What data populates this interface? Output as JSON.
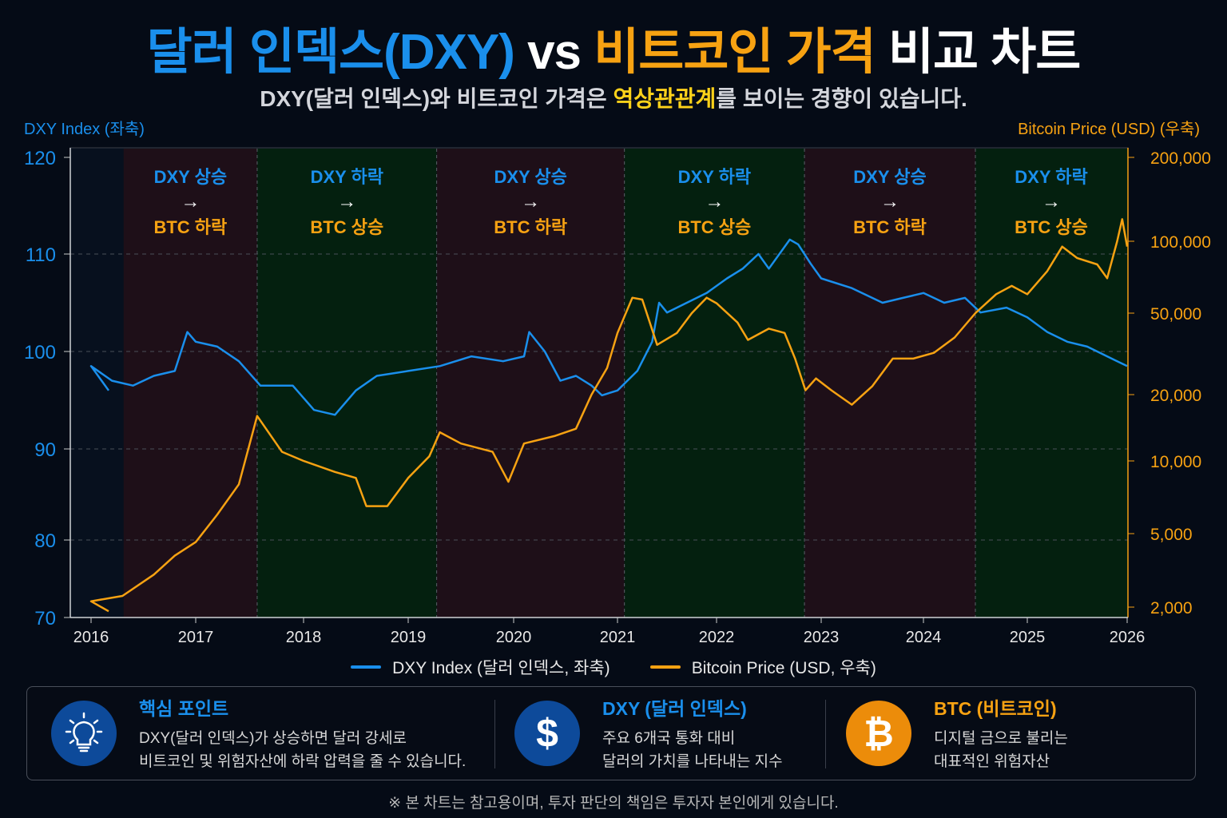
{
  "header": {
    "title_part1": "달러 인덱스(DXY)",
    "title_part2": " vs ",
    "title_part3": "비트코인 가격",
    "title_part4": " 비교 차트",
    "subtitle_part1": "DXY(달러 인덱스)와 비트코인 가격은 ",
    "subtitle_highlight": "역상관관계",
    "subtitle_part2": "를 보이는 경향이 있습니다."
  },
  "colors": {
    "background": "#050b16",
    "dxy": "#1a8fec",
    "btc": "#f7a212",
    "highlight": "#ffd21a",
    "rise_region": "#1e0f18",
    "fall_region": "#04200f"
  },
  "chart_data": {
    "type": "line",
    "title": "달러 인덱스(DXY) vs 비트코인 가격 비교 차트",
    "ylabel_left": "DXY Index (좌축)",
    "ylabel_right": "Bitcoin Price (USD) (우축)",
    "xlim": [
      2015.8,
      2026.0
    ],
    "ylim_left": [
      70,
      120
    ],
    "ylim_right": [
      1900,
      200000
    ],
    "right_scale": "log",
    "grid": "horizontal dashed",
    "legend_placement": "bottom-center",
    "x_ticks": [
      "2016",
      "2017",
      "2018",
      "2019",
      "2020",
      "2021",
      "2022",
      "2023",
      "2024",
      "2025",
      "2026"
    ],
    "y_ticks_left": [
      "120",
      "110",
      "100",
      "90",
      "80",
      "70"
    ],
    "y_ticks_right": [
      "200,000",
      "100,000",
      "50,000",
      "20,000",
      "10,000",
      "5,000",
      "2,000"
    ],
    "series": [
      {
        "name": "DXY Index (달러 인덱스, 좌축)",
        "axis": "left",
        "x": [
          2015.8,
          2016.0,
          2016.2,
          2016.4,
          2016.6,
          2016.8,
          2016.92,
          2017.0,
          2017.2,
          2017.4,
          2017.6,
          2017.9,
          2018.1,
          2018.3,
          2018.5,
          2018.7,
          2019.0,
          2019.3,
          2019.6,
          2019.9,
          2020.1,
          2020.15,
          2020.3,
          2020.45,
          2020.6,
          2020.75,
          2020.85,
          2021.0,
          2021.2,
          2021.35,
          2021.42,
          2021.5,
          2021.7,
          2021.9,
          2022.1,
          2022.25,
          2022.4,
          2022.5,
          2022.7,
          2022.78,
          2022.9,
          2023.0,
          2023.3,
          2023.6,
          2023.8,
          2024.0,
          2024.2,
          2024.4,
          2024.55,
          2024.8,
          2025.0,
          2025.2,
          2025.4,
          2025.6,
          2025.8,
          2026.0
        ],
        "values": [
          96,
          98.5,
          97,
          96.5,
          97.5,
          98,
          102,
          101,
          100.5,
          99,
          96.5,
          96.5,
          94,
          93.5,
          96,
          97.5,
          98,
          98.5,
          99.5,
          99,
          99.5,
          102,
          100,
          97,
          97.5,
          96.5,
          95.5,
          96,
          98,
          101,
          105,
          104,
          105,
          106,
          107.5,
          108.5,
          110,
          108.5,
          111.5,
          111,
          109,
          107.5,
          106.5,
          105,
          105.5,
          106,
          105,
          105.5,
          104,
          104.5,
          103.5,
          102,
          101,
          100.5,
          99.5,
          98.5
        ]
      },
      {
        "name": "Bitcoin Price (USD, 우축)",
        "axis": "right",
        "x": [
          2015.8,
          2016.0,
          2016.3,
          2016.6,
          2016.8,
          2017.0,
          2017.2,
          2017.4,
          2017.57,
          2017.8,
          2018.0,
          2018.3,
          2018.5,
          2018.6,
          2018.8,
          2019.0,
          2019.2,
          2019.3,
          2019.5,
          2019.8,
          2019.95,
          2020.1,
          2020.4,
          2020.6,
          2020.75,
          2020.9,
          2021.0,
          2021.15,
          2021.25,
          2021.4,
          2021.6,
          2021.75,
          2021.9,
          2022.0,
          2022.2,
          2022.3,
          2022.5,
          2022.65,
          2022.75,
          2022.85,
          2022.95,
          2023.1,
          2023.3,
          2023.5,
          2023.7,
          2023.9,
          2024.1,
          2024.3,
          2024.5,
          2024.7,
          2024.85,
          2025.0,
          2025.2,
          2025.35,
          2025.5,
          2025.7,
          2025.8,
          2025.9,
          2025.95,
          2026.0
        ],
        "values": [
          1900,
          2150,
          2300,
          3000,
          3800,
          4500,
          6000,
          8000,
          16000,
          11000,
          10000,
          9000,
          8500,
          6500,
          6500,
          8500,
          10500,
          13500,
          12000,
          11000,
          8200,
          12000,
          13000,
          14000,
          20000,
          27000,
          40000,
          58000,
          57000,
          35000,
          40000,
          50000,
          58000,
          55000,
          45000,
          37000,
          42000,
          40000,
          30000,
          21000,
          24000,
          21000,
          18000,
          22000,
          30000,
          30000,
          32000,
          38000,
          50000,
          60000,
          65000,
          60000,
          75000,
          95000,
          85000,
          80000,
          70000,
          100000,
          120000,
          95000
        ]
      }
    ],
    "regions": [
      {
        "from": 2015.95,
        "to": 2017.57,
        "type": "rise",
        "line1": "DXY 상승",
        "arrow": "→",
        "line2": "BTC 하락"
      },
      {
        "from": 2017.57,
        "to": 2019.27,
        "type": "fall",
        "line1": "DXY 하락",
        "arrow": "→",
        "line2": "BTC 상승"
      },
      {
        "from": 2019.27,
        "to": 2021.07,
        "type": "rise",
        "line1": "DXY 상승",
        "arrow": "→",
        "line2": "BTC 하락"
      },
      {
        "from": 2021.07,
        "to": 2022.84,
        "type": "fall",
        "line1": "DXY 하락",
        "arrow": "→",
        "line2": "BTC 상승"
      },
      {
        "from": 2022.84,
        "to": 2024.5,
        "type": "rise",
        "line1": "DXY 상승",
        "arrow": "→",
        "line2": "BTC 하락"
      },
      {
        "from": 2024.5,
        "to": 2026.0,
        "type": "fall",
        "line1": "DXY 하락",
        "arrow": "→",
        "line2": "BTC 상승"
      }
    ]
  },
  "panel": {
    "cards": [
      {
        "icon": "lightbulb-icon",
        "title": "핵심 포인트",
        "line1": "DXY(달러 인덱스)가 상승하면 달러 강세로",
        "line2": "비트코인 및 위험자산에 하락 압력을 줄 수 있습니다."
      },
      {
        "icon": "dollar-icon",
        "glyph": "$",
        "title": "DXY (달러 인덱스)",
        "line1": "주요 6개국 통화 대비",
        "line2": "달러의 가치를 나타내는 지수"
      },
      {
        "icon": "bitcoin-icon",
        "glyph": "₿",
        "title": "BTC (비트코인)",
        "line1": "디지털 금으로 불리는",
        "line2": "대표적인 위험자산"
      }
    ]
  },
  "footer": "※ 본 차트는 참고용이며, 투자 판단의 책임은 투자자 본인에게 있습니다."
}
